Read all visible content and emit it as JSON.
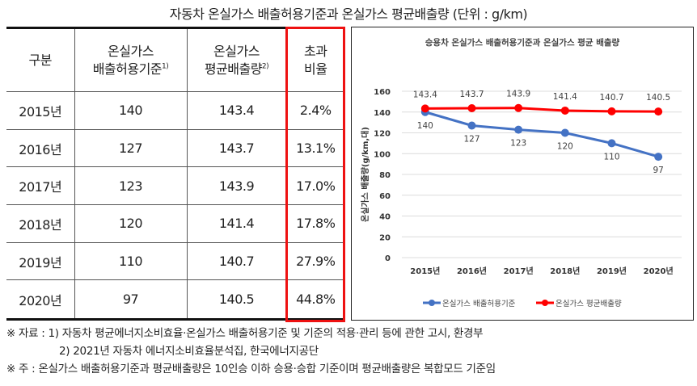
{
  "title": "자동차 온실가스 배출허용기준과 온실가스 평균배출량 (단위 : g/km)",
  "table": {
    "headers": {
      "c0": "구분",
      "c1_line1": "온실가스",
      "c1_line2": "배출허용기준",
      "c1_sup": "1)",
      "c2_line1": "온실가스",
      "c2_line2": "평균배출량",
      "c2_sup": "2)",
      "c3_line1": "초과",
      "c3_line2": "비율"
    },
    "rows": [
      {
        "year": "2015년",
        "standard": "140",
        "average": "143.4",
        "ratio": "2.4%"
      },
      {
        "year": "2016년",
        "standard": "127",
        "average": "143.7",
        "ratio": "13.1%"
      },
      {
        "year": "2017년",
        "standard": "123",
        "average": "143.9",
        "ratio": "17.0%"
      },
      {
        "year": "2018년",
        "standard": "120",
        "average": "141.4",
        "ratio": "17.8%"
      },
      {
        "year": "2019년",
        "standard": "110",
        "average": "140.7",
        "ratio": "27.9%"
      },
      {
        "year": "2020년",
        "standard": "97",
        "average": "140.5",
        "ratio": "44.8%"
      }
    ],
    "highlight_color": "#ee1111"
  },
  "chart_data": {
    "type": "line",
    "title": "승용차 온실가스 배출허용기준과 온실가스 평균 배출량",
    "xlabel": "",
    "ylabel": "온실가스 배출량(g/km,대)",
    "categories": [
      "2015년",
      "2016년",
      "2017년",
      "2018년",
      "2019년",
      "2020년"
    ],
    "series": [
      {
        "name": "온실가스 배출허용기준",
        "color": "#4472c4",
        "values": [
          140,
          127,
          123,
          120,
          110,
          97
        ]
      },
      {
        "name": "온실가스 평균배출량",
        "color": "#ff0000",
        "values": [
          143.4,
          143.7,
          143.9,
          141.4,
          140.7,
          140.5
        ]
      }
    ],
    "ylim": [
      0,
      160
    ],
    "yticks": [
      "0",
      "20",
      "40",
      "60",
      "80",
      "100",
      "120",
      "140",
      "160"
    ],
    "grid": true,
    "legend_position": "bottom"
  },
  "notes": {
    "source_line1": "※ 자료 : 1) 자동차 평균에너지소비효율·온실가스 배출허용기준 및 기준의  적용·관리 등에 관한 고시, 환경부",
    "source_line2": "2) 2021년 자동차 에너지소비효율분석집, 한국에너지공단",
    "note_line": "※ 주 : 온실가스 배출허용기준과 평균배출량은 10인승 이하 승용·승합 기준이며 평균배출량은 복합모드 기준임"
  }
}
